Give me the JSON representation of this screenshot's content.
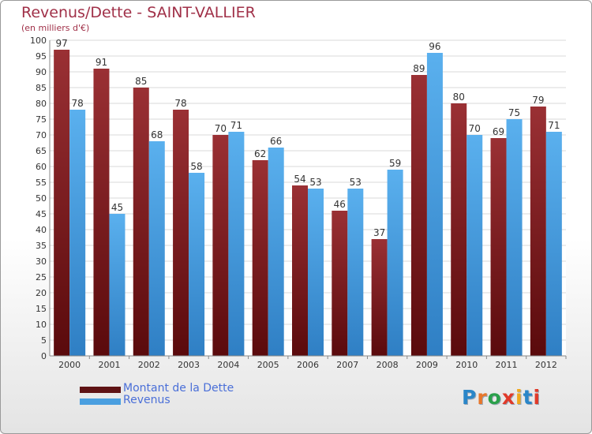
{
  "header": {
    "title": "Revenus/Dette - SAINT-VALLIER",
    "subtitle": "(en milliers d'€)"
  },
  "legend": {
    "items": [
      {
        "label": "Montant de la Dette",
        "color": "#7a1f22"
      },
      {
        "label": "Revenus",
        "color": "#4a9fe0"
      }
    ]
  },
  "logo": {
    "text": "Proxiti",
    "colors": [
      "#2a86c8",
      "#e8762a",
      "#2aa04a",
      "#e03a2a",
      "#f0a81e",
      "#2a86c8",
      "#e03a2a"
    ]
  },
  "chart_data": {
    "type": "bar",
    "categories": [
      "2000",
      "2001",
      "2002",
      "2003",
      "2004",
      "2005",
      "2006",
      "2007",
      "2008",
      "2009",
      "2010",
      "2011",
      "2012"
    ],
    "series": [
      {
        "name": "Montant de la Dette",
        "values": [
          97,
          91,
          85,
          78,
          70,
          62,
          54,
          46,
          37,
          89,
          80,
          69,
          79
        ],
        "color": "#7a1f22"
      },
      {
        "name": "Revenus",
        "values": [
          78,
          45,
          68,
          58,
          71,
          66,
          53,
          53,
          59,
          96,
          70,
          75,
          71
        ],
        "color": "#4a9fe0"
      }
    ],
    "ylim": [
      0,
      100
    ],
    "ytick_step": 5,
    "grid": true,
    "legend_position": "bottom-left",
    "title": "Revenus/Dette - SAINT-VALLIER",
    "ylabel": "(en milliers d'€)"
  }
}
